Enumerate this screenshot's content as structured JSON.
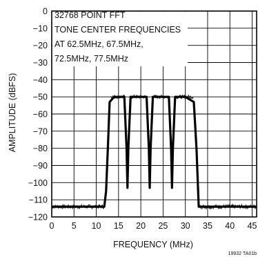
{
  "chart_data": {
    "type": "line",
    "title": "",
    "xlabel": "FREQUENCY (MHz)",
    "ylabel": "AMPLITUDE (dBFS)",
    "xlim": [
      0,
      46
    ],
    "ylim": [
      -120,
      0
    ],
    "x_ticks": [
      "0",
      "5",
      "10",
      "15",
      "20",
      "25",
      "30",
      "35",
      "40",
      "45"
    ],
    "y_ticks": [
      "0",
      "−10",
      "−20",
      "−30",
      "−40",
      "−50",
      "−60",
      "−70",
      "−80",
      "−90",
      "−100",
      "−110",
      "−120"
    ],
    "grid": true,
    "annotation": [
      "32768 POINT FFT",
      "TONE CENTER FREQUENCIES",
      "AT 62.5MHz, 67.5MHz,",
      "72.5MHz, 77.5MHz"
    ],
    "figure_code": "19932 TA01b",
    "noise_floor_dbfs": -114,
    "passband_level_dbfs": -50,
    "notches": [
      {
        "x": 17.0,
        "y": -103
      },
      {
        "x": 22.0,
        "y": -103
      },
      {
        "x": 27.0,
        "y": -103
      }
    ],
    "series": [
      {
        "x": [
          0,
          11.8,
          12.2,
          12.6,
          13,
          14,
          16.3,
          16.8,
          17,
          17.2,
          17.7,
          21.3,
          21.8,
          22,
          22.2,
          22.7,
          26.3,
          26.8,
          27,
          27.2,
          27.7,
          30,
          31.9,
          32.5,
          33,
          46
        ],
        "y": [
          -114,
          -114,
          -105,
          -80,
          -53,
          -50,
          -50,
          -80,
          -103,
          -80,
          -50,
          -50,
          -80,
          -103,
          -80,
          -50,
          -50,
          -80,
          -103,
          -80,
          -50,
          -50,
          -53,
          -80,
          -114,
          -114
        ]
      }
    ]
  }
}
